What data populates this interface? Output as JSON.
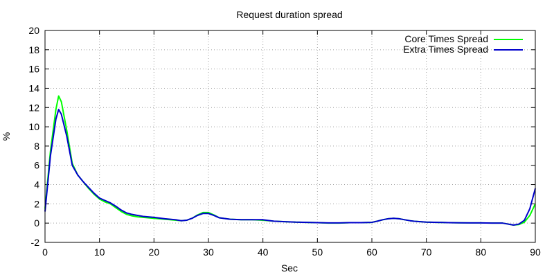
{
  "chart_data": {
    "type": "line",
    "title": "Request duration spread",
    "xlabel": "Sec",
    "ylabel": "%",
    "xlim": [
      0,
      90
    ],
    "ylim": [
      -2,
      20
    ],
    "x_ticks": [
      0,
      10,
      20,
      30,
      40,
      50,
      60,
      70,
      80,
      90
    ],
    "y_ticks": [
      -2,
      0,
      2,
      4,
      6,
      8,
      10,
      12,
      14,
      16,
      18,
      20
    ],
    "grid": true,
    "legend_position": "top-right",
    "series": [
      {
        "name": "Core Times Spread",
        "color": "#00ff00",
        "points": [
          [
            0,
            1.5
          ],
          [
            1,
            7.5
          ],
          [
            2,
            11.8
          ],
          [
            2.5,
            13.2
          ],
          [
            3,
            12.6
          ],
          [
            4,
            9.6
          ],
          [
            5,
            6.2
          ],
          [
            6,
            5.0
          ],
          [
            7,
            4.3
          ],
          [
            8,
            3.6
          ],
          [
            9,
            3.0
          ],
          [
            10,
            2.5
          ],
          [
            11,
            2.2
          ],
          [
            12,
            2.0
          ],
          [
            13,
            1.6
          ],
          [
            14,
            1.2
          ],
          [
            15,
            0.9
          ],
          [
            16,
            0.75
          ],
          [
            17,
            0.65
          ],
          [
            18,
            0.6
          ],
          [
            20,
            0.5
          ],
          [
            22,
            0.4
          ],
          [
            24,
            0.3
          ],
          [
            25,
            0.25
          ],
          [
            26,
            0.3
          ],
          [
            27,
            0.5
          ],
          [
            28,
            0.85
          ],
          [
            29,
            1.1
          ],
          [
            30,
            1.1
          ],
          [
            31,
            0.85
          ],
          [
            32,
            0.55
          ],
          [
            34,
            0.4
          ],
          [
            36,
            0.35
          ],
          [
            38,
            0.35
          ],
          [
            40,
            0.3
          ],
          [
            42,
            0.2
          ],
          [
            44,
            0.15
          ],
          [
            46,
            0.1
          ],
          [
            48,
            0.08
          ],
          [
            50,
            0.05
          ],
          [
            52,
            0.0
          ],
          [
            54,
            0.0
          ],
          [
            56,
            0.05
          ],
          [
            58,
            0.05
          ],
          [
            60,
            0.08
          ],
          [
            61,
            0.2
          ],
          [
            62,
            0.35
          ],
          [
            63,
            0.45
          ],
          [
            64,
            0.5
          ],
          [
            65,
            0.45
          ],
          [
            66,
            0.35
          ],
          [
            67,
            0.25
          ],
          [
            68,
            0.18
          ],
          [
            70,
            0.1
          ],
          [
            72,
            0.08
          ],
          [
            74,
            0.05
          ],
          [
            76,
            0.03
          ],
          [
            78,
            0.02
          ],
          [
            80,
            0.02
          ],
          [
            82,
            0.0
          ],
          [
            84,
            0.0
          ],
          [
            85,
            -0.1
          ],
          [
            86,
            -0.2
          ],
          [
            87,
            -0.15
          ],
          [
            88,
            0.1
          ],
          [
            89,
            0.8
          ],
          [
            90,
            2.0
          ]
        ]
      },
      {
        "name": "Extra Times Spread",
        "color": "#0000cc",
        "points": [
          [
            0,
            1.2
          ],
          [
            1,
            7.0
          ],
          [
            2,
            10.8
          ],
          [
            2.5,
            11.8
          ],
          [
            3,
            11.3
          ],
          [
            4,
            9.0
          ],
          [
            5,
            6.0
          ],
          [
            6,
            5.0
          ],
          [
            7,
            4.3
          ],
          [
            8,
            3.7
          ],
          [
            9,
            3.1
          ],
          [
            10,
            2.6
          ],
          [
            11,
            2.35
          ],
          [
            12,
            2.1
          ],
          [
            13,
            1.75
          ],
          [
            14,
            1.35
          ],
          [
            15,
            1.05
          ],
          [
            16,
            0.9
          ],
          [
            17,
            0.8
          ],
          [
            18,
            0.7
          ],
          [
            20,
            0.6
          ],
          [
            22,
            0.45
          ],
          [
            24,
            0.35
          ],
          [
            25,
            0.25
          ],
          [
            26,
            0.3
          ],
          [
            27,
            0.5
          ],
          [
            28,
            0.8
          ],
          [
            29,
            1.0
          ],
          [
            30,
            1.0
          ],
          [
            31,
            0.8
          ],
          [
            32,
            0.55
          ],
          [
            34,
            0.4
          ],
          [
            36,
            0.35
          ],
          [
            38,
            0.35
          ],
          [
            40,
            0.35
          ],
          [
            42,
            0.2
          ],
          [
            44,
            0.15
          ],
          [
            46,
            0.1
          ],
          [
            48,
            0.08
          ],
          [
            50,
            0.05
          ],
          [
            52,
            0.02
          ],
          [
            54,
            0.02
          ],
          [
            56,
            0.05
          ],
          [
            58,
            0.05
          ],
          [
            60,
            0.08
          ],
          [
            61,
            0.2
          ],
          [
            62,
            0.35
          ],
          [
            63,
            0.45
          ],
          [
            64,
            0.5
          ],
          [
            65,
            0.45
          ],
          [
            66,
            0.35
          ],
          [
            67,
            0.25
          ],
          [
            68,
            0.18
          ],
          [
            70,
            0.1
          ],
          [
            72,
            0.08
          ],
          [
            74,
            0.05
          ],
          [
            76,
            0.03
          ],
          [
            78,
            0.02
          ],
          [
            80,
            0.02
          ],
          [
            82,
            0.0
          ],
          [
            84,
            0.0
          ],
          [
            85,
            -0.1
          ],
          [
            86,
            -0.2
          ],
          [
            87,
            -0.1
          ],
          [
            88,
            0.3
          ],
          [
            89,
            1.5
          ],
          [
            90,
            3.6
          ]
        ]
      }
    ]
  }
}
